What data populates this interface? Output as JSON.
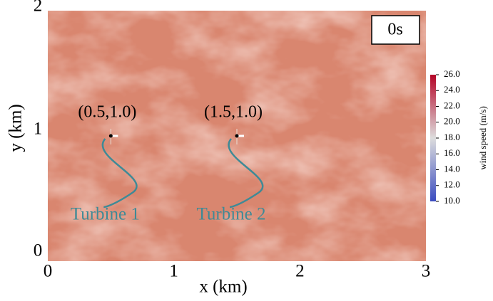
{
  "chart_data": {
    "type": "field",
    "xlabel": "x (km)",
    "ylabel": "y (km)",
    "xlim": [
      0,
      3
    ],
    "ylim": [
      0,
      2
    ],
    "xticks": [
      0,
      1,
      2,
      3
    ],
    "yticks": [
      0,
      1,
      2
    ],
    "time_label": "0s",
    "turbines": [
      {
        "name": "Turbine 1",
        "label": "(0.5,1.0)",
        "x": 0.5,
        "y": 1.0
      },
      {
        "name": "Turbine 2",
        "label": "(1.5,1.0)",
        "x": 1.5,
        "y": 1.0
      }
    ],
    "colorbar": {
      "label": "wind speed (m/s)",
      "lim": [
        10,
        26
      ],
      "colors": [
        "#3b4cc0",
        "#dddddd",
        "#b40426"
      ],
      "ticks": [
        {
          "value": 10,
          "label": "10.0"
        },
        {
          "value": 12,
          "label": "12.0"
        },
        {
          "value": 14,
          "label": "14.0"
        },
        {
          "value": 16,
          "label": "16.0"
        },
        {
          "value": 18,
          "label": "18.0"
        },
        {
          "value": 20,
          "label": "20.0"
        },
        {
          "value": 22,
          "label": "22.0"
        },
        {
          "value": 24,
          "label": "24.0"
        },
        {
          "value": 26,
          "label": "26.0"
        }
      ]
    }
  }
}
